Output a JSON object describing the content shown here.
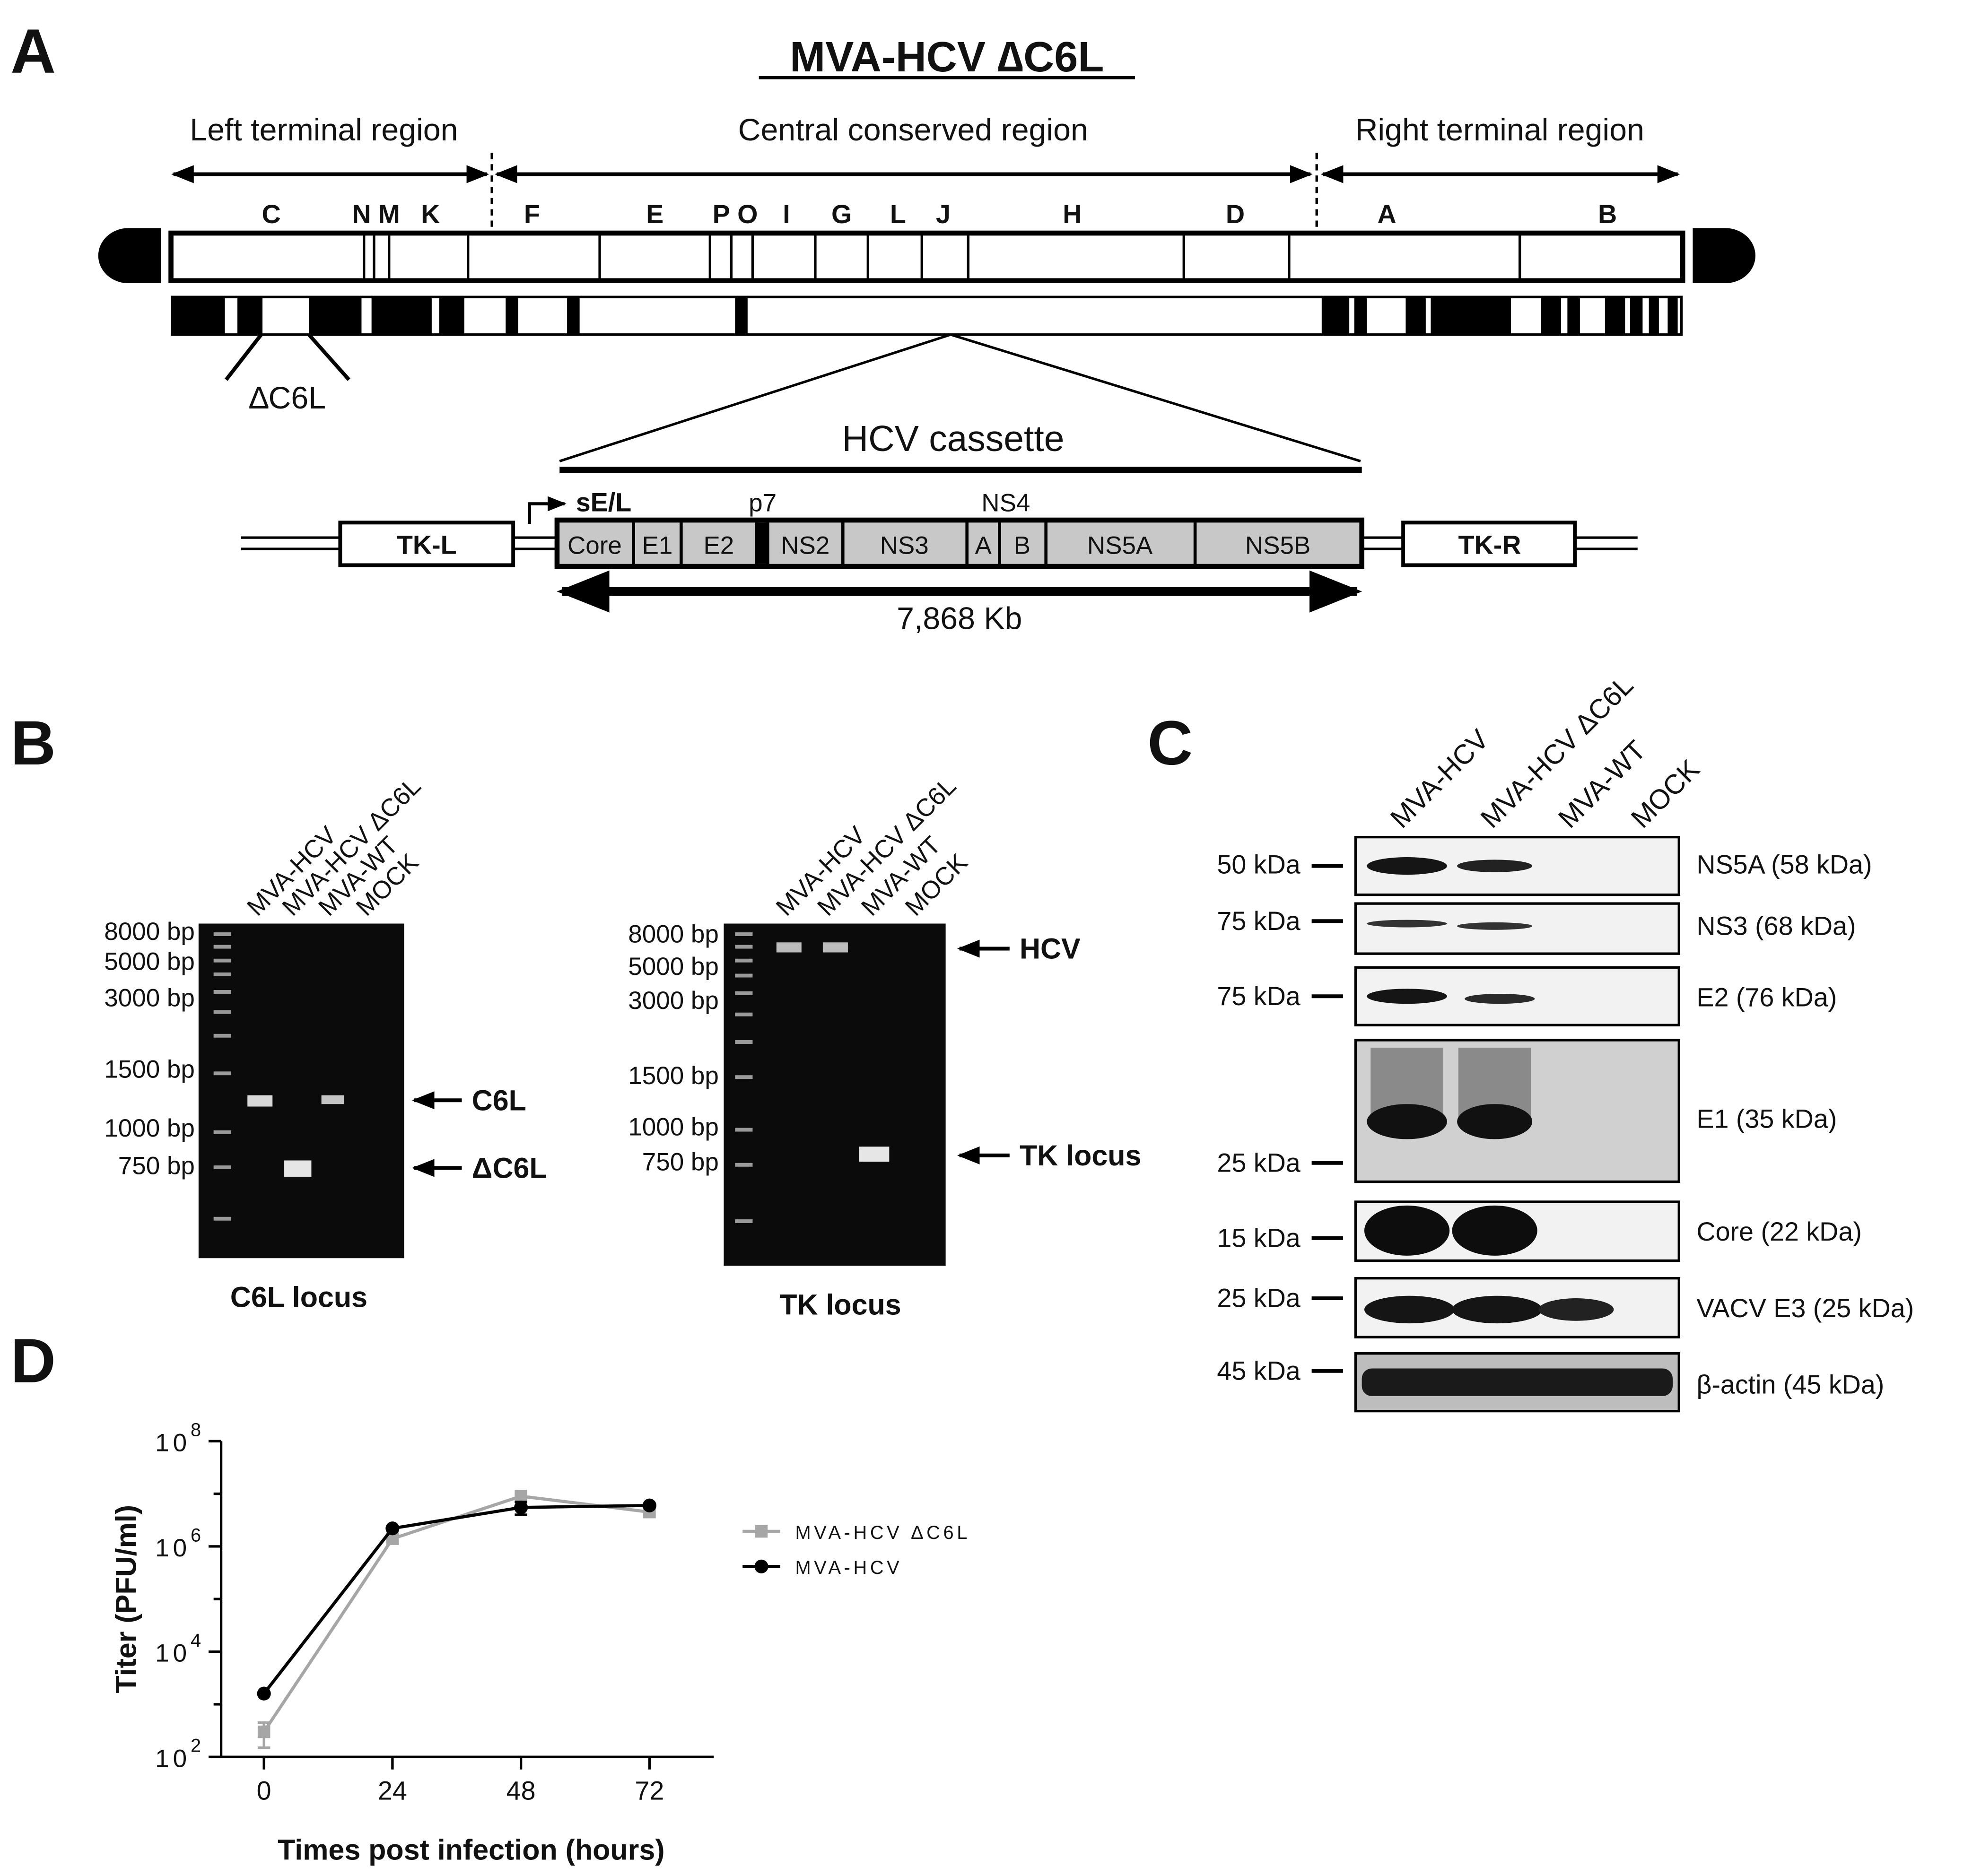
{
  "panel_letters": {
    "a": "A",
    "b": "B",
    "c": "C",
    "d": "D"
  },
  "panel_a": {
    "title": "MVA-HCV ∆C6L",
    "regions": {
      "left": "Left terminal region",
      "central": "Central conserved region",
      "right": "Right terminal region"
    },
    "fragment_letters": [
      "C",
      "N",
      "M",
      "K",
      "F",
      "E",
      "P",
      "O",
      "I",
      "G",
      "L",
      "J",
      "H",
      "D",
      "A",
      "B"
    ],
    "deletion_label": "∆C6L",
    "cassette_title": "HCV cassette",
    "promoter": "sE/L",
    "above_labels": {
      "p7": "p7",
      "ns4": "NS4"
    },
    "tk_left": "TK-L",
    "tk_right": "TK-R",
    "genes": [
      "Core",
      "E1",
      "E2",
      "NS2",
      "NS3",
      "A",
      "B",
      "NS5A",
      "NS5B"
    ],
    "size_label": "7,868 Kb"
  },
  "panel_b": {
    "gel1": {
      "lanes": [
        "MVA-HCV",
        "MVA-HCV ΔC6L",
        "MVA-WT",
        "MOCK"
      ],
      "markers": [
        "8000 bp",
        "5000 bp",
        "3000 bp",
        "1500 bp",
        "1000 bp",
        "750 bp"
      ],
      "bands": [
        "C6L",
        "ΔC6L"
      ],
      "caption": "C6L locus"
    },
    "gel2": {
      "lanes": [
        "MVA-HCV",
        "MVA-HCV ΔC6L",
        "MVA-WT",
        "MOCK"
      ],
      "markers": [
        "8000 bp",
        "5000 bp",
        "3000 bp",
        "1500 bp",
        "1000 bp",
        "750 bp"
      ],
      "bands": [
        "HCV",
        "TK locus"
      ],
      "caption": "TK locus"
    }
  },
  "panel_c": {
    "lanes": [
      "MVA-HCV",
      "MVA-HCV ΔC6L",
      "MVA-WT",
      "MOCK"
    ],
    "blots": [
      {
        "label": "NS5A (58 kDa)",
        "markers": [
          "50 kDa"
        ]
      },
      {
        "label": "NS3 (68 kDa)",
        "markers": [
          "75 kDa"
        ]
      },
      {
        "label": "E2 (76 kDa)",
        "markers": [
          "75 kDa"
        ]
      },
      {
        "label": "E1 (35 kDa)",
        "markers": [
          "25 kDa"
        ]
      },
      {
        "label": "Core (22 kDa)",
        "markers": [
          "15 kDa"
        ]
      },
      {
        "label": "VACV E3 (25 kDa)",
        "markers": [
          "25 kDa"
        ]
      },
      {
        "label": "β-actin (45 kDa)",
        "markers": [
          "45 kDa"
        ]
      }
    ]
  },
  "chart_data": {
    "type": "line",
    "title": "",
    "xlabel": "Times post infection (hours)",
    "ylabel": "Titer (PFU/ml)",
    "x": [
      0,
      24,
      48,
      72
    ],
    "x_ticks": [
      "0",
      "24",
      "48",
      "72"
    ],
    "y_scale": "log10",
    "y_ticks": [
      {
        "base": "10",
        "exp": "2",
        "value": 100
      },
      {
        "base": "10",
        "exp": "4",
        "value": 10000
      },
      {
        "base": "10",
        "exp": "6",
        "value": 1000000
      },
      {
        "base": "10",
        "exp": "8",
        "value": 100000000
      }
    ],
    "ylim": [
      100,
      100000000
    ],
    "xlim": [
      -8,
      84
    ],
    "legend_position": "right",
    "series": [
      {
        "name": "MVA-HCV ΔC6L",
        "color": "#a6a6a6",
        "marker": "square",
        "values": [
          300,
          1400000,
          9000000,
          4500000
        ],
        "errors": [
          150,
          150000,
          1500000,
          500000
        ]
      },
      {
        "name": "MVA-HCV",
        "color": "#000000",
        "marker": "circle",
        "values": [
          1600,
          2200000,
          5500000,
          6000000
        ],
        "errors": [
          0,
          0,
          1500000,
          0
        ]
      }
    ]
  }
}
